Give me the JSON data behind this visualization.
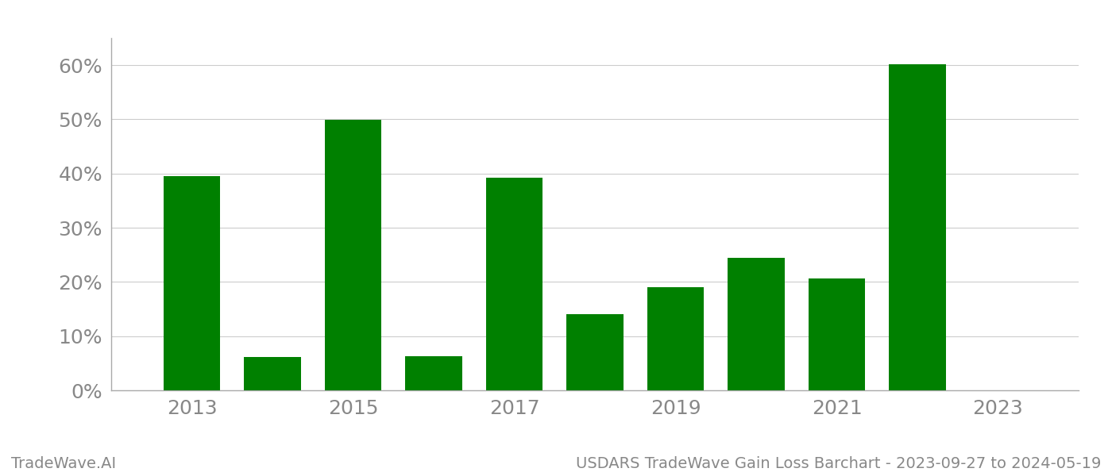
{
  "years": [
    2013,
    2014,
    2015,
    2016,
    2017,
    2018,
    2019,
    2020,
    2021,
    2022,
    2023
  ],
  "values": [
    0.395,
    0.062,
    0.499,
    0.063,
    0.392,
    0.141,
    0.191,
    0.244,
    0.206,
    0.601,
    null
  ],
  "bar_color": "#008000",
  "background_color": "#ffffff",
  "grid_color": "#cccccc",
  "axis_color": "#aaaaaa",
  "tick_label_color": "#888888",
  "yticks": [
    0.0,
    0.1,
    0.2,
    0.3,
    0.4,
    0.5,
    0.6
  ],
  "xtick_labels": [
    "2013",
    "2015",
    "2017",
    "2019",
    "2021",
    "2023"
  ],
  "xtick_positions": [
    2013,
    2015,
    2017,
    2019,
    2021,
    2023
  ],
  "footer_left": "TradeWave.AI",
  "footer_right": "USDARS TradeWave Gain Loss Barchart - 2023-09-27 to 2024-05-19",
  "footer_color": "#888888",
  "bar_width": 0.7,
  "xlim": [
    2012.0,
    2024.0
  ],
  "ylim": [
    0.0,
    0.65
  ],
  "tick_fontsize": 18,
  "footer_fontsize": 14
}
